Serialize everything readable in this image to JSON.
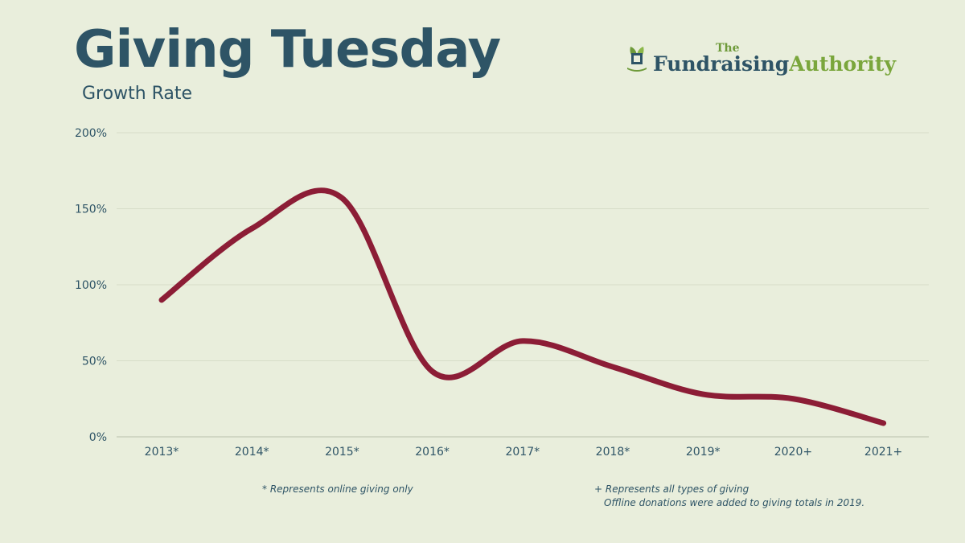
{
  "header": {
    "title": "Giving Tuesday",
    "subtitle": "Growth Rate"
  },
  "logo": {
    "the": "The",
    "main": "Fundraising",
    "accent": "Authority",
    "icon": "plant-sprout-icon"
  },
  "colors": {
    "background": "#e9eedc",
    "title": "#2e5466",
    "line": "#8c1d36",
    "grid": "#d6dcc8",
    "logo_green": "#7aa63c"
  },
  "chart_data": {
    "type": "line",
    "title": "Giving Tuesday",
    "subtitle": "Growth Rate",
    "categories": [
      "2013*",
      "2014*",
      "2015*",
      "2016*",
      "2017*",
      "2018*",
      "2019*",
      "2020+",
      "2021+"
    ],
    "series": [
      {
        "values": [
          90,
          137,
          157,
          43,
          63,
          46,
          28,
          25,
          9
        ]
      }
    ],
    "y_ticks": [
      "0%",
      "50%",
      "100%",
      "150%",
      "200%"
    ],
    "ylim": [
      0,
      200
    ],
    "grid": true,
    "smooth": true
  },
  "footnotes": {
    "left": "* Represents online giving only",
    "right_line1": "+ Represents all types of giving",
    "right_line2": "Offline donations were added to giving totals in 2019."
  }
}
